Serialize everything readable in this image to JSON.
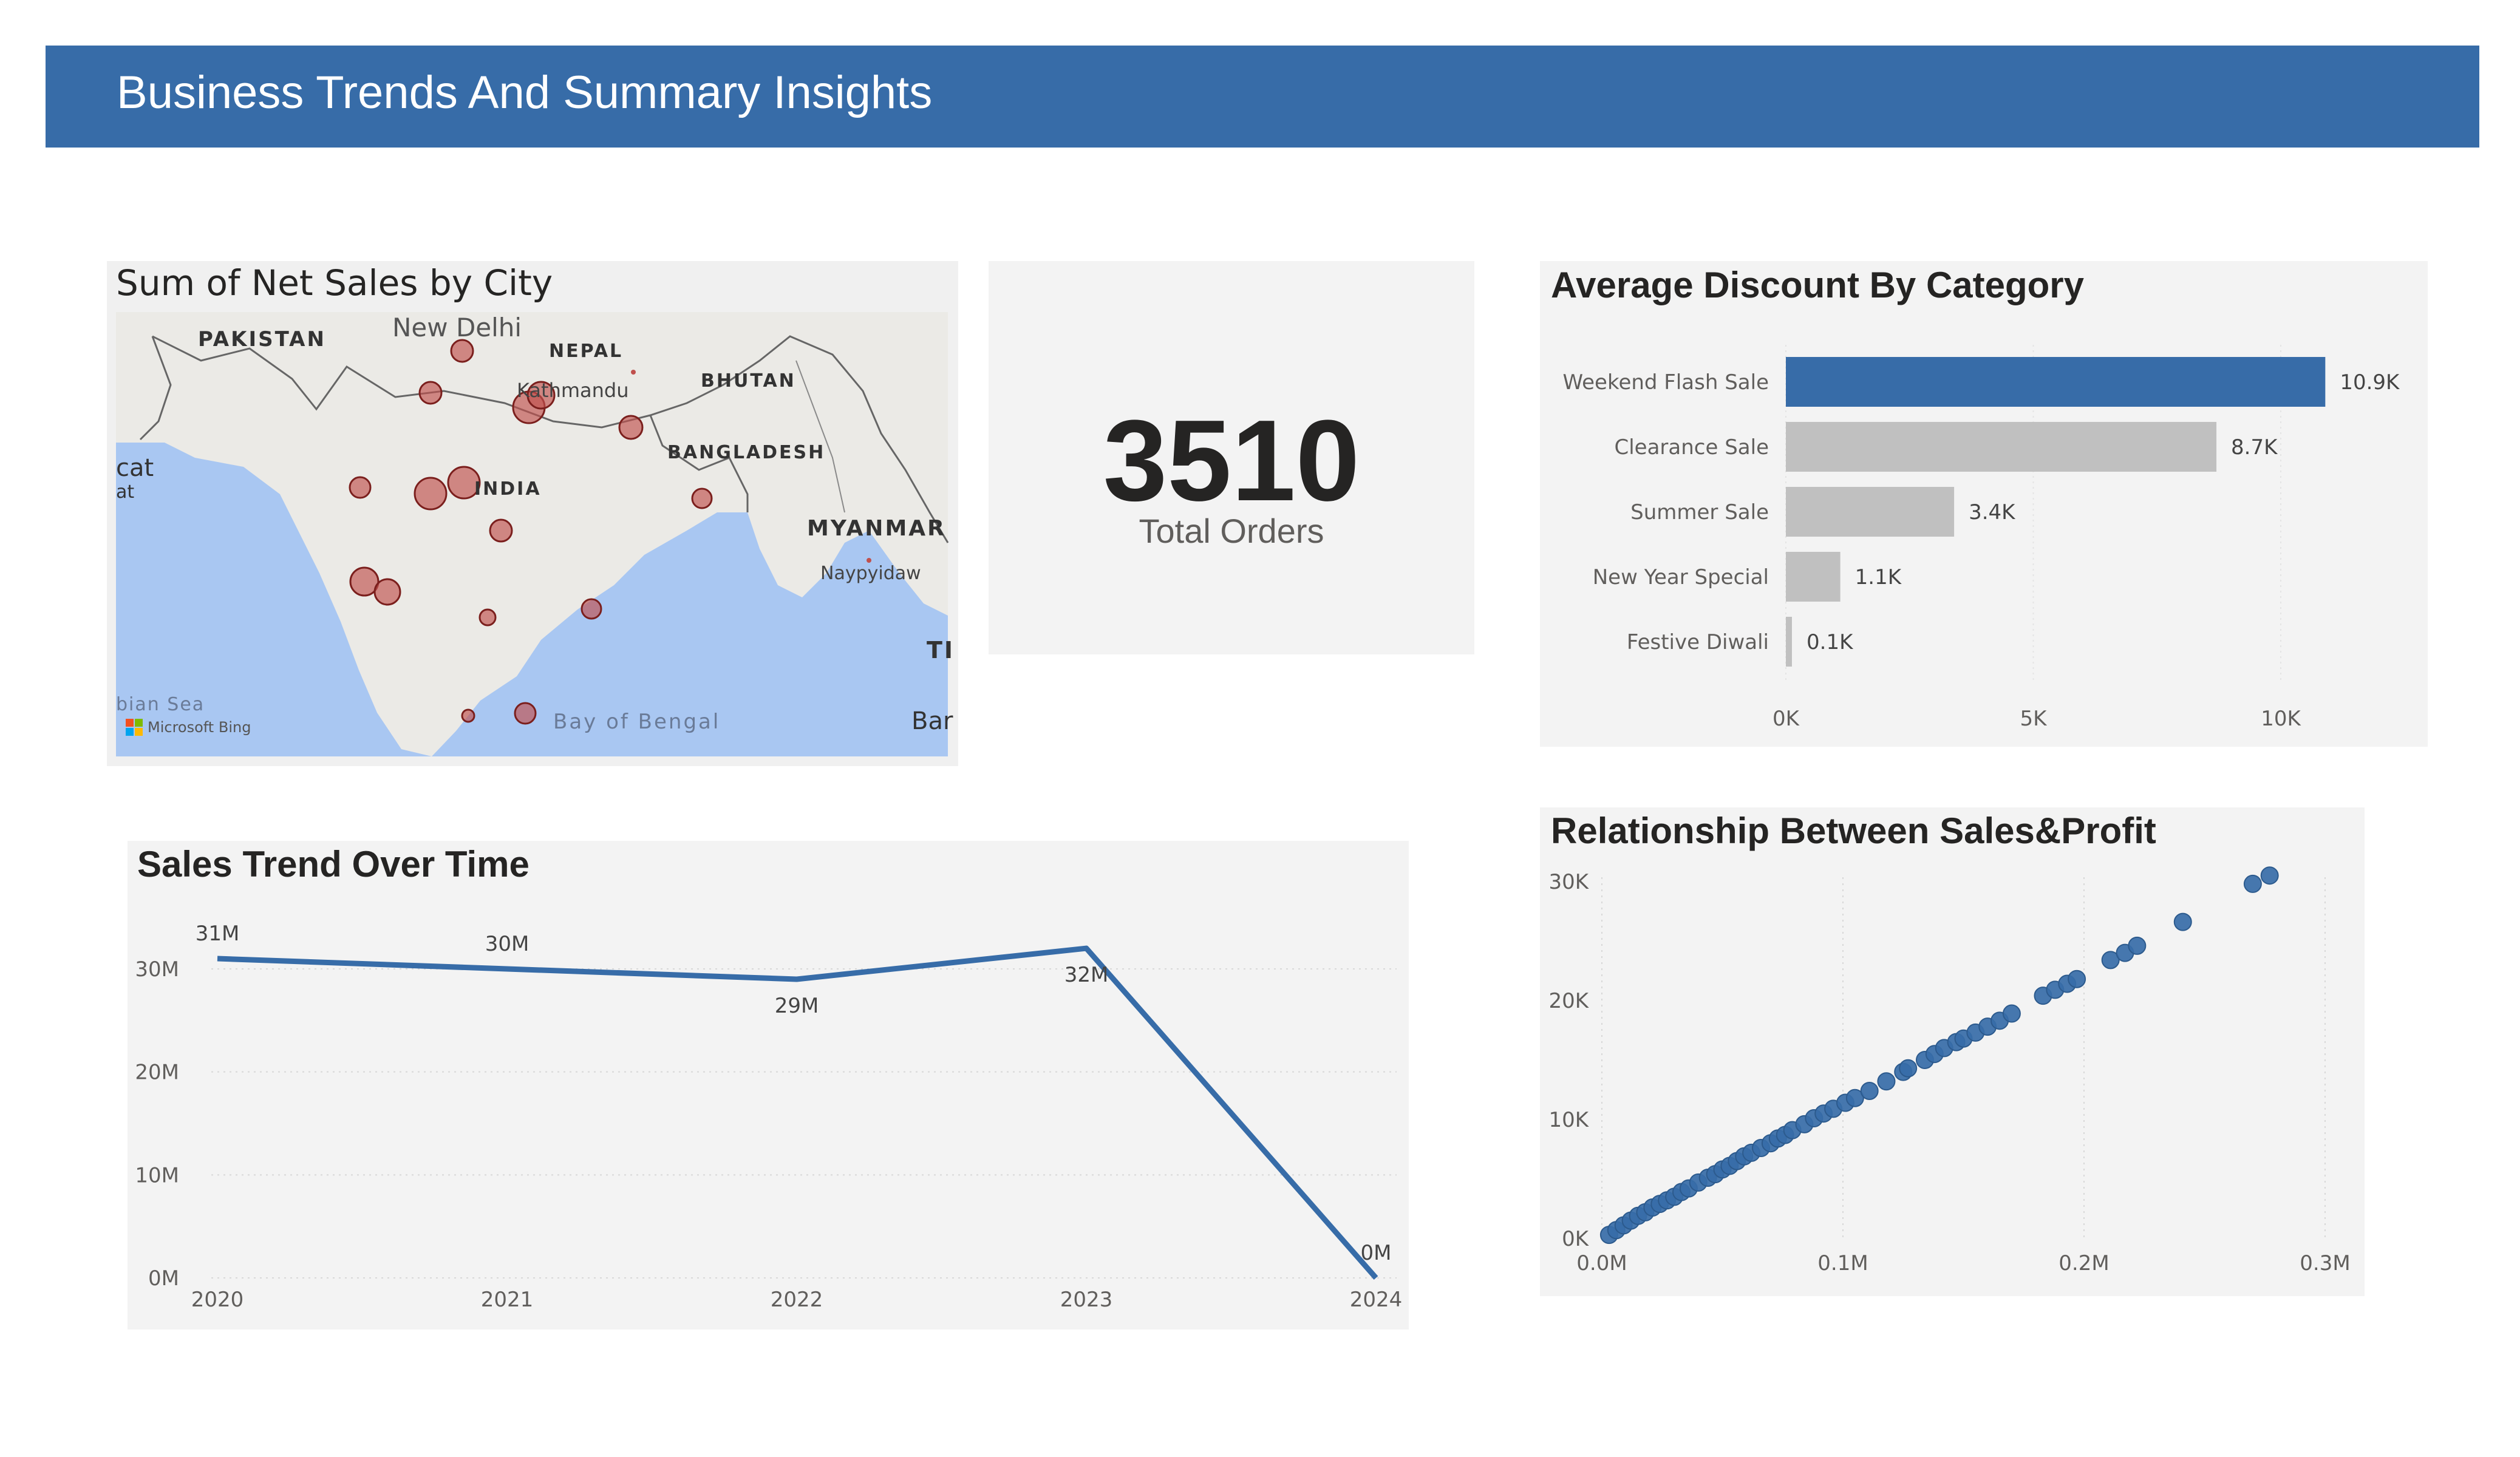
{
  "header": {
    "title": "Business Trends And Summary Insights"
  },
  "map": {
    "title": "Sum of Net Sales by City",
    "labels": {
      "pakistan": "PAKISTAN",
      "new_delhi": "New Delhi",
      "nepal": "NEPAL",
      "kathmandu": "Kathmandu",
      "bhutan": "BHUTAN",
      "bangladesh": "BANGLADESH",
      "india": "INDIA",
      "myanmar": "MYANMAR",
      "naypyidaw": "Naypyidaw",
      "cat": "cat",
      "at": "at",
      "arabian_sea": "bian Sea",
      "bay_of_bengal": "Bay of Bengal",
      "ti": "TI",
      "bar": "Bar"
    },
    "attribution": "Microsoft Bing",
    "colors": {
      "water": "#a9c7f2",
      "land": "#ebeae6",
      "bubble": "#c0504d"
    }
  },
  "kpi": {
    "value": "3510",
    "label": "Total Orders"
  },
  "discount_chart": {
    "title": "Average Discount By Category",
    "chart_data": {
      "type": "bar",
      "orientation": "horizontal",
      "categories": [
        "Weekend Flash Sale",
        "Clearance Sale",
        "Summer Sale",
        "New Year Special",
        "Festive Diwali"
      ],
      "values": [
        10.9,
        8.7,
        3.4,
        1.1,
        0.1
      ],
      "value_unit": "K",
      "data_labels": [
        "10.9K",
        "8.7K",
        "3.4K",
        "1.1K",
        "0.1K"
      ],
      "xlim": [
        0,
        12
      ],
      "xticks": [
        0,
        5,
        10
      ],
      "xtick_labels": [
        "0K",
        "5K",
        "10K"
      ],
      "highlight_color": "#376ca8",
      "bar_color": "#c0c0c0"
    }
  },
  "sales_trend": {
    "title": "Sales Trend Over Time",
    "chart_data": {
      "type": "line",
      "x": [
        "2020",
        "2021",
        "2022",
        "2023",
        "2024"
      ],
      "values": [
        31,
        30,
        29,
        32,
        0
      ],
      "value_unit": "M",
      "data_labels": [
        "31M",
        "30M",
        "29M",
        "32M",
        "0M"
      ],
      "ylim": [
        0,
        33
      ],
      "yticks": [
        0,
        10,
        20,
        30
      ],
      "ytick_labels": [
        "0M",
        "10M",
        "20M",
        "30M"
      ],
      "grid": true,
      "color": "#376ca8"
    }
  },
  "scatter": {
    "title": "Relationship Between Sales&Profit",
    "chart_data": {
      "type": "scatter",
      "x": [
        0.003,
        0.006,
        0.009,
        0.012,
        0.015,
        0.018,
        0.021,
        0.024,
        0.027,
        0.03,
        0.033,
        0.036,
        0.04,
        0.044,
        0.047,
        0.05,
        0.053,
        0.056,
        0.059,
        0.062,
        0.066,
        0.07,
        0.073,
        0.076,
        0.079,
        0.084,
        0.088,
        0.092,
        0.096,
        0.101,
        0.105,
        0.111,
        0.118,
        0.125,
        0.127,
        0.134,
        0.138,
        0.142,
        0.147,
        0.15,
        0.155,
        0.16,
        0.165,
        0.17,
        0.183,
        0.188,
        0.193,
        0.197,
        0.211,
        0.217,
        0.222,
        0.241,
        0.27,
        0.277
      ],
      "y": [
        300,
        700,
        1100,
        1500,
        1900,
        2200,
        2600,
        2900,
        3200,
        3500,
        3900,
        4200,
        4700,
        5100,
        5400,
        5800,
        6100,
        6500,
        6900,
        7200,
        7600,
        8000,
        8400,
        8700,
        9100,
        9600,
        10100,
        10500,
        10900,
        11400,
        11800,
        12400,
        13200,
        14000,
        14300,
        15000,
        15500,
        16000,
        16500,
        16800,
        17300,
        17800,
        18300,
        18900,
        20400,
        20900,
        21400,
        21800,
        23400,
        24000,
        24600,
        26600,
        29800,
        30500
      ],
      "xlim": [
        0,
        0.3
      ],
      "ylim": [
        0,
        30000
      ],
      "xticks": [
        0,
        0.1,
        0.2,
        0.3
      ],
      "xtick_labels": [
        "0.0M",
        "0.1M",
        "0.2M",
        "0.3M"
      ],
      "yticks": [
        0,
        10000,
        20000,
        30000
      ],
      "ytick_labels": [
        "0K",
        "10K",
        "20K",
        "30K"
      ],
      "grid": true,
      "color": "#376ca8"
    }
  }
}
